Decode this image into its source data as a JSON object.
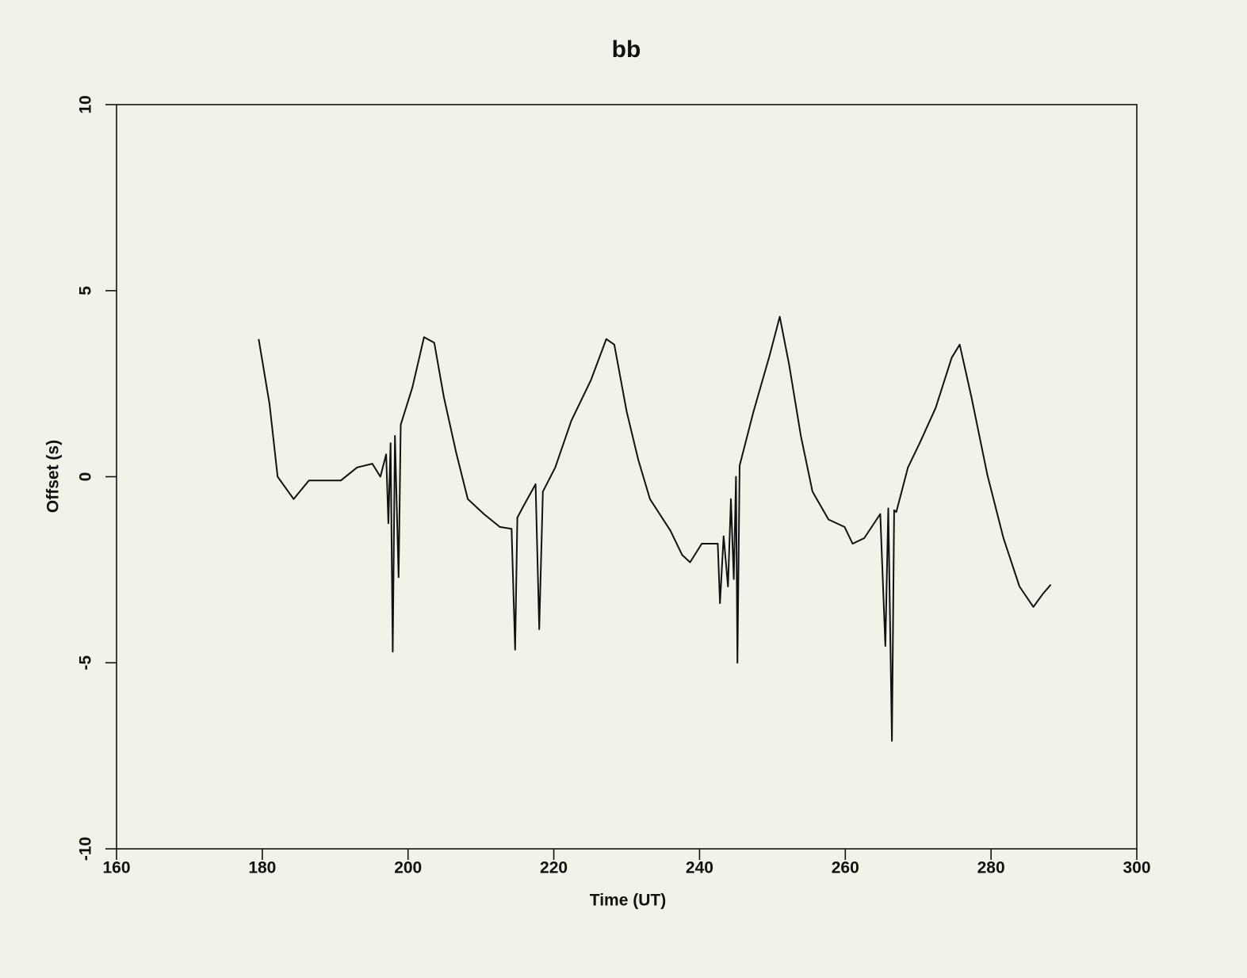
{
  "chart_data": {
    "type": "line",
    "title": "bb",
    "x_label": "Time (UT)",
    "y_label": "Offset (s)",
    "xlim": [
      160,
      300
    ],
    "ylim": [
      -10,
      10
    ],
    "xticks": [
      160,
      180,
      200,
      220,
      240,
      260,
      280,
      300
    ],
    "yticks": [
      -10,
      -5,
      0,
      5,
      10
    ],
    "x": [
      179.5,
      181.0,
      182.1,
      184.3,
      186.4,
      188.6,
      190.8,
      193.0,
      195.1,
      196.2,
      197.0,
      197.3,
      197.6,
      197.9,
      198.2,
      198.7,
      199.0,
      200.6,
      202.2,
      203.6,
      204.9,
      206.6,
      208.2,
      210.4,
      212.6,
      214.2,
      214.7,
      215.0,
      215.8,
      217.5,
      218.0,
      218.5,
      220.2,
      222.4,
      225.1,
      227.2,
      228.3,
      230.0,
      231.6,
      233.2,
      236.0,
      237.6,
      238.7,
      240.3,
      242.5,
      242.8,
      243.3,
      243.9,
      244.3,
      244.7,
      245.0,
      245.2,
      245.5,
      245.7,
      247.4,
      249.6,
      251.0,
      252.3,
      253.9,
      255.5,
      257.7,
      259.9,
      261.0,
      262.6,
      264.8,
      265.5,
      265.9,
      266.4,
      266.7,
      267.0,
      268.6,
      270.2,
      272.4,
      274.6,
      275.7,
      277.3,
      279.5,
      281.7,
      283.9,
      285.8,
      287.1,
      288.2
    ],
    "series": [
      {
        "name": "bb",
        "color": "#111111",
        "values": [
          3.7,
          1.95,
          0.0,
          -0.6,
          -0.1,
          -0.1,
          -0.1,
          0.25,
          0.35,
          0.0,
          0.6,
          -1.25,
          0.9,
          -4.7,
          1.1,
          -2.7,
          1.4,
          2.4,
          3.75,
          3.6,
          2.15,
          0.65,
          -0.6,
          -1.0,
          -1.35,
          -1.4,
          -4.65,
          -1.1,
          -0.8,
          -0.2,
          -4.1,
          -0.4,
          0.25,
          1.5,
          2.6,
          3.7,
          3.55,
          1.75,
          0.45,
          -0.6,
          -1.45,
          -2.1,
          -2.3,
          -1.8,
          -1.8,
          -3.4,
          -1.6,
          -2.95,
          -0.6,
          -2.75,
          0.0,
          -5.0,
          0.3,
          0.45,
          1.75,
          3.25,
          4.3,
          3.0,
          1.1,
          -0.4,
          -1.15,
          -1.35,
          -1.8,
          -1.65,
          -1.0,
          -4.55,
          -0.85,
          -7.1,
          -0.9,
          -0.95,
          0.25,
          0.9,
          1.85,
          3.2,
          3.55,
          2.15,
          0.05,
          -1.65,
          -2.95,
          -3.5,
          -3.15,
          -2.9
        ]
      }
    ]
  }
}
